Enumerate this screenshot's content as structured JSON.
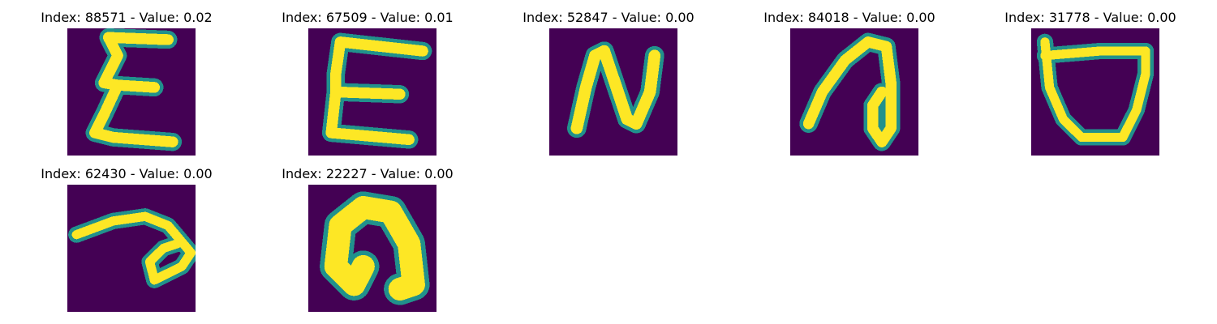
{
  "colors": {
    "background": "#440154",
    "stroke_outer": "#21918c",
    "stroke_mid": "#5ec962",
    "stroke_core": "#fde725"
  },
  "panels": [
    {
      "title": "Index: 88571 - Value: 0.02",
      "glyph": "E-shape"
    },
    {
      "title": "Index: 67509 - Value: 0.01",
      "glyph": "E-shape"
    },
    {
      "title": "Index: 52847 - Value: 0.00",
      "glyph": "N-shape"
    },
    {
      "title": "Index: 84018 - Value: 0.00",
      "glyph": "loop-shape"
    },
    {
      "title": "Index: 31778 - Value: 0.00",
      "glyph": "cup-shape"
    },
    {
      "title": "Index: 62430 - Value: 0.00",
      "glyph": "loop-shape"
    },
    {
      "title": "Index: 22227 - Value: 0.00",
      "glyph": "arch-shape"
    }
  ]
}
